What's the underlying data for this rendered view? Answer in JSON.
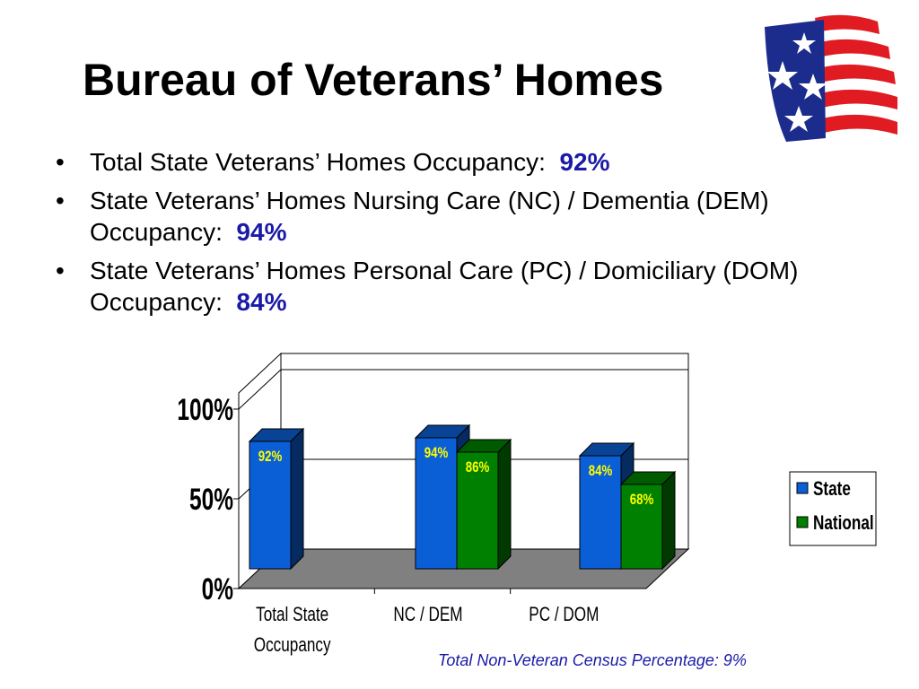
{
  "title": "Bureau of Veterans’ Homes",
  "bullets": [
    {
      "text": "Total State Veterans’ Homes Occupancy:",
      "value": "92%"
    },
    {
      "text": "State Veterans’ Homes Nursing Care (NC) / Dementia (DEM) Occupancy:",
      "value": "94%"
    },
    {
      "text": "State Veterans’ Homes Personal Care (PC) / Domiciliary (DOM) Occupancy:",
      "value": "84%"
    }
  ],
  "footnote": "Total Non-Veteran Census Percentage:  9%",
  "colors": {
    "state": "#0b5fd6",
    "national": "#008000",
    "floor": "#808080",
    "value_label_color": "#ffff00",
    "accent": "#1a1aa6",
    "flag_red": "#e11b22",
    "flag_blue": "#1c2c8c"
  },
  "chart_data": {
    "type": "bar",
    "categories": [
      "Total State Occupancy",
      "NC / DEM",
      "PC / DOM"
    ],
    "series": [
      {
        "name": "State",
        "values": [
          92,
          94,
          84
        ],
        "labels": [
          "92%",
          "94%",
          "84%"
        ]
      },
      {
        "name": "National",
        "values": [
          null,
          86,
          68
        ],
        "labels": [
          "",
          "86%",
          "68%"
        ]
      }
    ],
    "category_labels": [
      [
        "Total State",
        "Occupancy"
      ],
      [
        "NC / DEM"
      ],
      [
        "PC / DOM"
      ]
    ],
    "yticks": [
      {
        "value": 0,
        "label": "0%"
      },
      {
        "value": 50,
        "label": "50%"
      },
      {
        "value": 100,
        "label": "100%"
      }
    ],
    "ylim": [
      0,
      100
    ],
    "grid": true,
    "legend_position": "right",
    "style": "3d clustered columns"
  }
}
